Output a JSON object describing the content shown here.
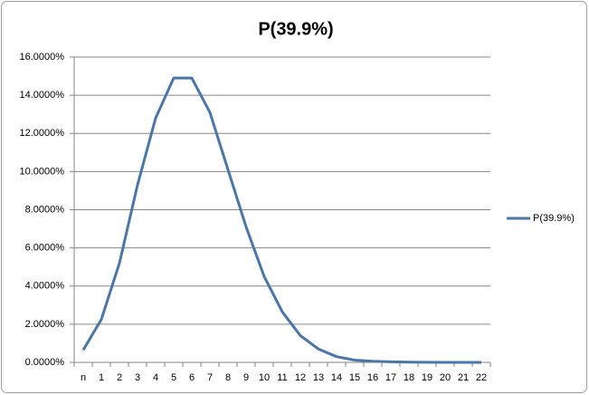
{
  "chart_data": {
    "type": "line",
    "title": "P(39.9%)",
    "categories": [
      "n",
      "1",
      "2",
      "3",
      "4",
      "5",
      "6",
      "7",
      "8",
      "9",
      "10",
      "11",
      "12",
      "13",
      "14",
      "15",
      "16",
      "17",
      "18",
      "19",
      "20",
      "21",
      "22"
    ],
    "series": [
      {
        "name": "P(39.9%)",
        "color": "#4a76a8",
        "values": [
          0.65,
          2.25,
          5.2,
          9.3,
          12.8,
          14.9,
          14.9,
          13.1,
          10.1,
          7.1,
          4.5,
          2.65,
          1.4,
          0.7,
          0.3,
          0.12,
          0.06,
          0.03,
          0.01,
          0.005,
          0,
          0,
          0
        ]
      }
    ],
    "ylim": [
      0,
      16
    ],
    "yticks": [
      {
        "value": 0,
        "label": "0.0000%"
      },
      {
        "value": 2,
        "label": "2.0000%"
      },
      {
        "value": 4,
        "label": "4.0000%"
      },
      {
        "value": 6,
        "label": "6.0000%"
      },
      {
        "value": 8,
        "label": "8.0000%"
      },
      {
        "value": 10,
        "label": "10.0000%"
      },
      {
        "value": 12,
        "label": "12.0000%"
      },
      {
        "value": 14,
        "label": "14.0000%"
      },
      {
        "value": 16,
        "label": "16.0000%"
      }
    ],
    "grid": true,
    "legend": "right"
  }
}
